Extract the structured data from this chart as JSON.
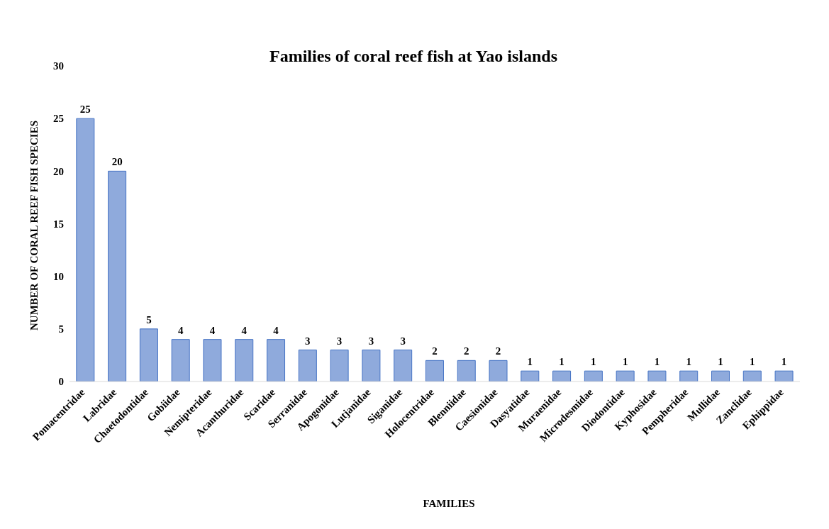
{
  "chart_data": {
    "type": "bar",
    "title": "Families of coral reef fish at Yao islands",
    "xlabel": "FAMILIES",
    "ylabel": "NUMBER OF CORAL REEF FISH SPECIES",
    "categories": [
      "Pomacentridae",
      "Labridae",
      "Chaetodontidae",
      "Gobiidae",
      "Nemipteridae",
      "Acanthuridae",
      "Scaridae",
      "Serranidae",
      "Apogonidae",
      "Lutjanidae",
      "Siganidae",
      "Holocentridae",
      "Blenniidae",
      "Caesionidae",
      "Dasyatidae",
      "Muraenidae",
      "Microdesmidae",
      "Diodontidae",
      "Kyphosidae",
      "Pempheridae",
      "Mullidae",
      "Zanclidae",
      "Ephippidae"
    ],
    "values": [
      25,
      20,
      5,
      4,
      4,
      4,
      4,
      3,
      3,
      3,
      3,
      2,
      2,
      2,
      1,
      1,
      1,
      1,
      1,
      1,
      1,
      1,
      1
    ],
    "color": "#8faadc",
    "ylim": [
      0,
      30
    ],
    "yticks": [
      0,
      5,
      10,
      15,
      20,
      25,
      30
    ],
    "data_labels": true
  }
}
